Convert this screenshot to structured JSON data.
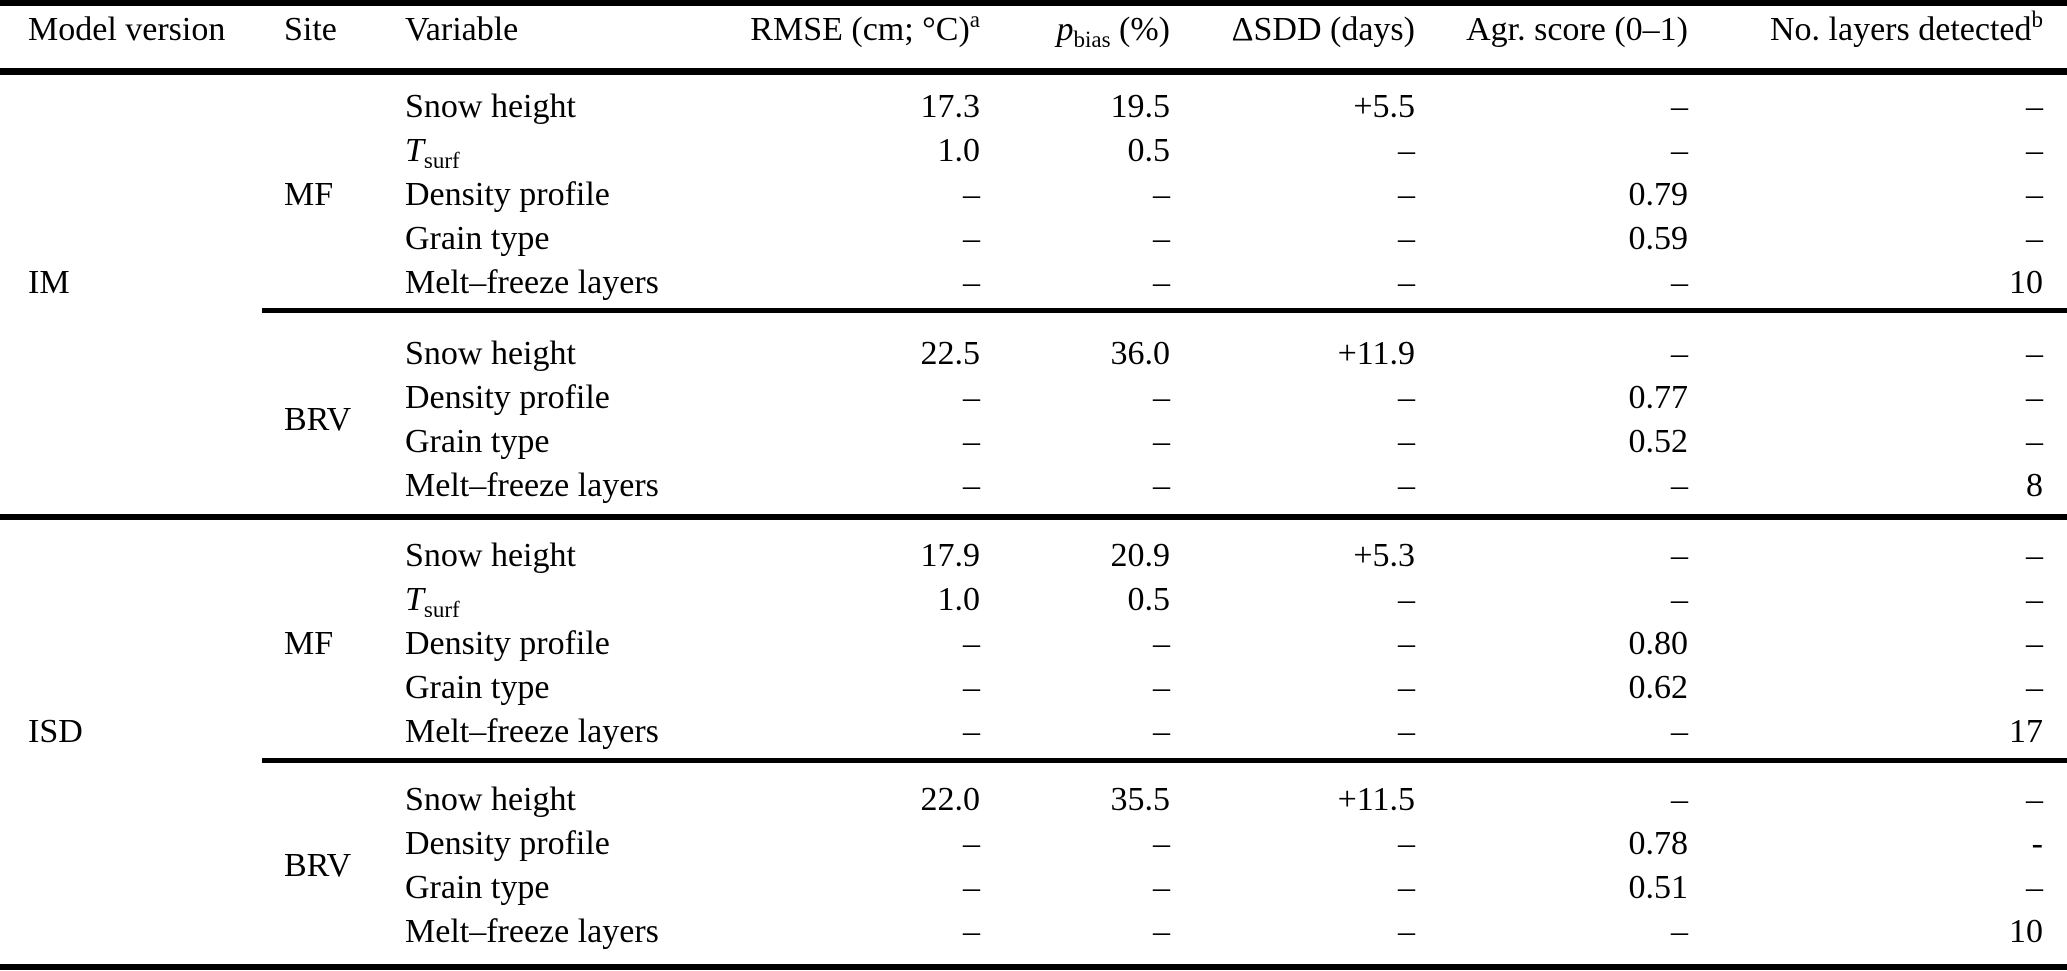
{
  "table": {
    "header": {
      "model": "Model version",
      "site": "Site",
      "variable": "Variable",
      "rmse": "RMSE (cm; °C)",
      "rmse_sup": "a",
      "pbias_symbol": "p",
      "pbias_sub": "bias",
      "pbias_unit": " (%)",
      "dsdd": "ΔSDD (days)",
      "agr": "Agr. score (0–1)",
      "layers": "No. layers detected",
      "layers_sup": "b"
    },
    "placeholder_dash": "–",
    "groups": [
      {
        "model": "IM",
        "sites": [
          {
            "site": "MF",
            "rows": [
              {
                "variable": {
                  "t": "Snow height"
                },
                "rmse": "17.3",
                "pbias": "19.5",
                "dsdd": "+5.5",
                "agr": "–",
                "layers": "–"
              },
              {
                "variable": {
                  "t": "T",
                  "it": true,
                  "sub": "surf"
                },
                "rmse": "1.0",
                "pbias": "0.5",
                "dsdd": "–",
                "agr": "–",
                "layers": "–"
              },
              {
                "variable": {
                  "t": "Density profile"
                },
                "rmse": "–",
                "pbias": "–",
                "dsdd": "–",
                "agr": "0.79",
                "layers": "–"
              },
              {
                "variable": {
                  "t": "Grain type"
                },
                "rmse": "–",
                "pbias": "–",
                "dsdd": "–",
                "agr": "0.59",
                "layers": "–"
              },
              {
                "variable": {
                  "t": "Melt–freeze layers"
                },
                "rmse": "–",
                "pbias": "–",
                "dsdd": "–",
                "agr": "–",
                "layers": "10"
              }
            ]
          },
          {
            "site": "BRV",
            "rows": [
              {
                "variable": {
                  "t": "Snow height"
                },
                "rmse": "22.5",
                "pbias": "36.0",
                "dsdd": "+11.9",
                "agr": "–",
                "layers": "–"
              },
              {
                "variable": {
                  "t": "Density profile"
                },
                "rmse": "–",
                "pbias": "–",
                "dsdd": "–",
                "agr": "0.77",
                "layers": "–"
              },
              {
                "variable": {
                  "t": "Grain type"
                },
                "rmse": "–",
                "pbias": "–",
                "dsdd": "–",
                "agr": "0.52",
                "layers": "–"
              },
              {
                "variable": {
                  "t": "Melt–freeze layers"
                },
                "rmse": "–",
                "pbias": "–",
                "dsdd": "–",
                "agr": "–",
                "layers": "8"
              }
            ]
          }
        ]
      },
      {
        "model": "ISD",
        "sites": [
          {
            "site": "MF",
            "rows": [
              {
                "variable": {
                  "t": "Snow height"
                },
                "rmse": "17.9",
                "pbias": "20.9",
                "dsdd": "+5.3",
                "agr": "–",
                "layers": "–"
              },
              {
                "variable": {
                  "t": "T",
                  "it": true,
                  "sub": "surf"
                },
                "rmse": "1.0",
                "pbias": "0.5",
                "dsdd": "–",
                "agr": "–",
                "layers": "–"
              },
              {
                "variable": {
                  "t": "Density profile"
                },
                "rmse": "–",
                "pbias": "–",
                "dsdd": "–",
                "agr": "0.80",
                "layers": "–"
              },
              {
                "variable": {
                  "t": "Grain type"
                },
                "rmse": "–",
                "pbias": "–",
                "dsdd": "–",
                "agr": "0.62",
                "layers": "–"
              },
              {
                "variable": {
                  "t": "Melt–freeze layers"
                },
                "rmse": "–",
                "pbias": "–",
                "dsdd": "–",
                "agr": "–",
                "layers": "17"
              }
            ]
          },
          {
            "site": "BRV",
            "rows": [
              {
                "variable": {
                  "t": "Snow height"
                },
                "rmse": "22.0",
                "pbias": "35.5",
                "dsdd": "+11.5",
                "agr": "–",
                "layers": "–"
              },
              {
                "variable": {
                  "t": "Density profile"
                },
                "rmse": "–",
                "pbias": "–",
                "dsdd": "–",
                "agr": "0.78",
                "layers": "-"
              },
              {
                "variable": {
                  "t": "Grain type"
                },
                "rmse": "–",
                "pbias": "–",
                "dsdd": "–",
                "agr": "0.51",
                "layers": "–"
              },
              {
                "variable": {
                  "t": "Melt–freeze layers"
                },
                "rmse": "–",
                "pbias": "–",
                "dsdd": "–",
                "agr": "–",
                "layers": "10"
              }
            ]
          }
        ]
      }
    ]
  }
}
